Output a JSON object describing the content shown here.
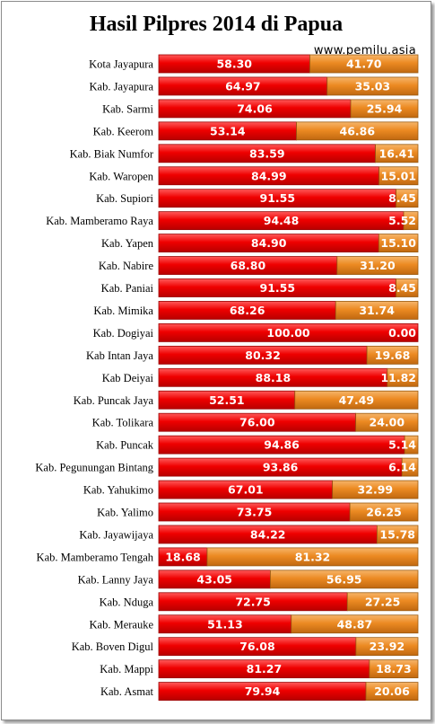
{
  "chart_data": {
    "type": "bar",
    "orientation": "horizontal",
    "stacked": true,
    "percent_stacked": true,
    "title": "Hasil Pilpres 2014 di Papua",
    "source": "www.pemilu.asia",
    "xlim": [
      0,
      100
    ],
    "grid": false,
    "legend": "none",
    "categories": [
      "Kota Jayapura",
      "Kab. Jayapura",
      "Kab. Sarmi",
      "Kab. Keerom",
      "Kab. Biak Numfor",
      "Kab. Waropen",
      "Kab. Supiori",
      "Kab. Mamberamo Raya",
      "Kab. Yapen",
      "Kab. Nabire",
      "Kab. Paniai",
      "Kab. Mimika",
      "Kab. Dogiyai",
      "Kab Intan Jaya",
      "Kab Deiyai",
      "Kab. Puncak Jaya",
      "Kab. Tolikara",
      "Kab. Puncak",
      "Kab. Pegunungan  Bintang",
      "Kab. Yahukimo",
      "Kab. Yalimo",
      "Kab. Jayawijaya",
      "Kab. Mamberamo Tengah",
      "Kab. Lanny Jaya",
      "Kab. Nduga",
      "Kab. Merauke",
      "Kab. Boven Digul",
      "Kab. Mappi",
      "Kab. Asmat"
    ],
    "series": [
      {
        "color": "#e60000",
        "values": [
          58.3,
          64.97,
          74.06,
          53.14,
          83.59,
          84.99,
          91.55,
          94.48,
          84.9,
          68.8,
          91.55,
          68.26,
          100.0,
          80.32,
          88.18,
          52.51,
          76.0,
          94.86,
          93.86,
          67.01,
          73.75,
          84.22,
          18.68,
          43.05,
          72.75,
          51.13,
          76.08,
          81.27,
          79.94
        ],
        "labels": [
          "58.30",
          "64.97",
          "74.06",
          "53.14",
          "83.59",
          "84.99",
          "91.55",
          "94.48",
          "84.90",
          "68.80",
          "91.55",
          "68.26",
          "100.00",
          "80.32",
          "88.18",
          "52.51",
          "76.00",
          "94.86",
          "93.86",
          "67.01",
          "73.75",
          "84.22",
          "18.68",
          "43.05",
          "72.75",
          "51.13",
          "76.08",
          "81.27",
          "79.94"
        ]
      },
      {
        "color": "#ed8a1e",
        "values": [
          41.7,
          35.03,
          25.94,
          46.86,
          16.41,
          15.01,
          8.45,
          5.52,
          15.1,
          31.2,
          8.45,
          31.74,
          0.0,
          19.68,
          11.82,
          47.49,
          24.0,
          5.14,
          6.14,
          32.99,
          26.25,
          15.78,
          81.32,
          56.95,
          27.25,
          48.87,
          23.92,
          18.73,
          20.06
        ],
        "labels": [
          "41.70",
          "35.03",
          "25.94",
          "46.86",
          "16.41",
          "15.01",
          "8.45",
          "5.52",
          "15.10",
          "31.20",
          "8.45",
          "31.74",
          "0.00",
          "19.68",
          "11.82",
          "47.49",
          "24.00",
          "5.14",
          "6.14",
          "32.99",
          "26.25",
          "15.78",
          "81.32",
          "56.95",
          "27.25",
          "48.87",
          "23.92",
          "18.73",
          "20.06"
        ]
      }
    ]
  }
}
